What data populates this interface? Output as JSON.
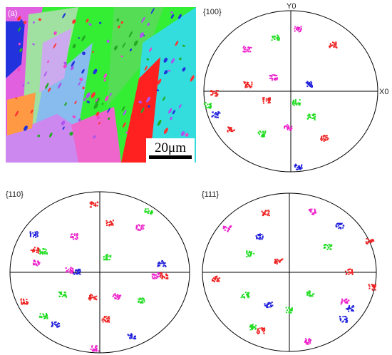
{
  "figure": {
    "panel_label": "(a)",
    "scale_bar": "20μm",
    "pole_figures": [
      {
        "label": "{100}",
        "y_axis": "Y0",
        "x_axis": "X0"
      },
      {
        "label": "{110}"
      },
      {
        "label": "{111}"
      }
    ]
  }
}
